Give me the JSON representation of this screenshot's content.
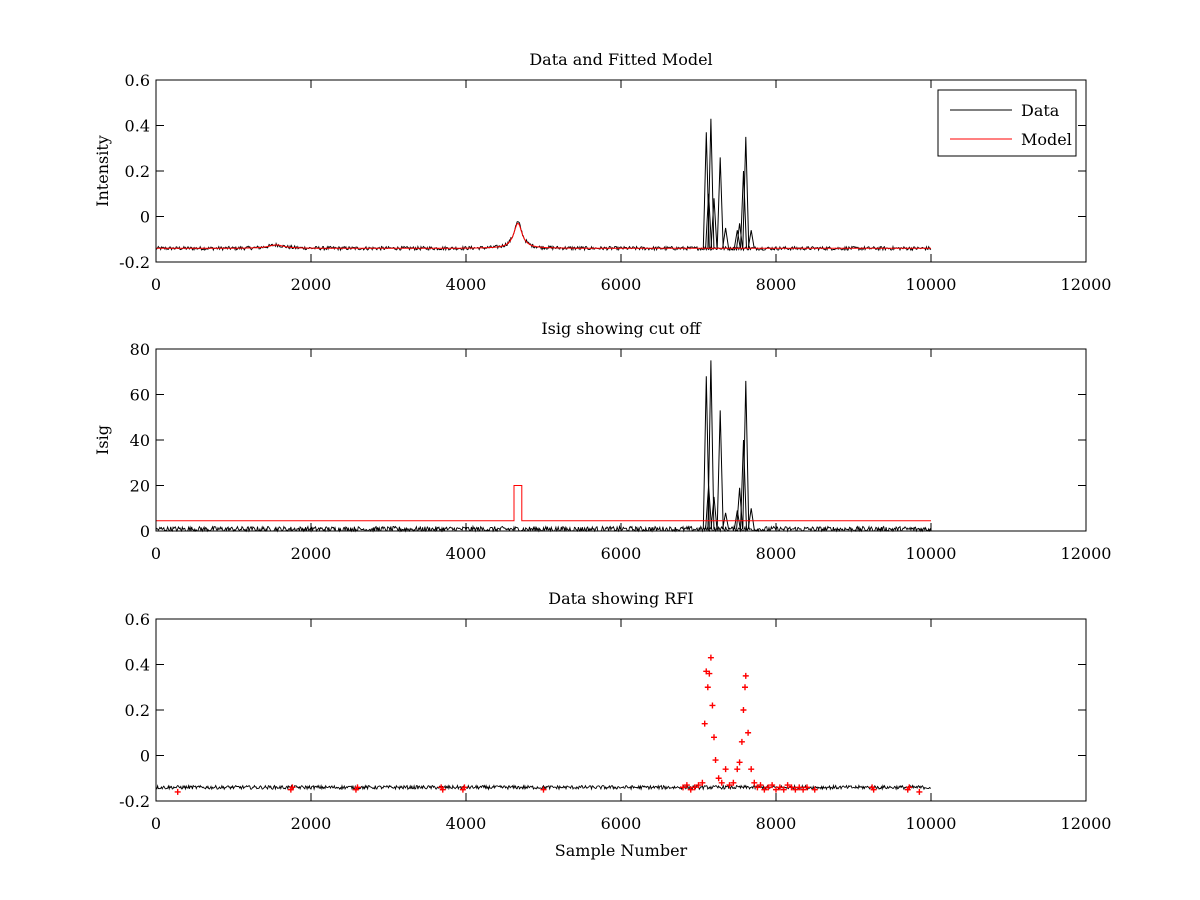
{
  "chart_data": [
    {
      "type": "line",
      "title": "Data and Fitted Model",
      "xlabel": "",
      "ylabel": "Intensity",
      "xlim": [
        0,
        12000
      ],
      "ylim": [
        -0.2,
        0.6
      ],
      "xticks": [
        "0",
        "2000",
        "4000",
        "6000",
        "8000",
        "10000",
        "12000"
      ],
      "yticks": [
        "-0.2",
        "0",
        "0.2",
        "0.4",
        "0.6"
      ],
      "legend": {
        "placement": "top-right",
        "entries": [
          "Data",
          "Model"
        ]
      },
      "grid": false,
      "series": [
        {
          "name": "Data",
          "color": "#000000",
          "baseline": -0.14,
          "noise": 0.008,
          "features": [
            {
              "kind": "bump",
              "center": 1550,
              "width": 120,
              "height": 0.015
            },
            {
              "kind": "bump",
              "center": 4670,
              "width": 65,
              "height": 0.115
            }
          ],
          "spikes": [
            {
              "x": 7100,
              "y": 0.37
            },
            {
              "x": 7130,
              "y": 0.1
            },
            {
              "x": 7160,
              "y": 0.43
            },
            {
              "x": 7200,
              "y": 0.08
            },
            {
              "x": 7280,
              "y": 0.26
            },
            {
              "x": 7350,
              "y": -0.05
            },
            {
              "x": 7500,
              "y": -0.06
            },
            {
              "x": 7530,
              "y": -0.03
            },
            {
              "x": 7580,
              "y": 0.2
            },
            {
              "x": 7610,
              "y": 0.35
            },
            {
              "x": 7680,
              "y": -0.06
            }
          ],
          "x_end": 10000
        },
        {
          "name": "Model",
          "color": "#ff0000",
          "baseline": -0.14,
          "features": [
            {
              "kind": "bump",
              "center": 1550,
              "width": 120,
              "height": 0.015
            },
            {
              "kind": "bump",
              "center": 4670,
              "width": 65,
              "height": 0.11
            }
          ],
          "x_end": 10000
        }
      ]
    },
    {
      "type": "line",
      "title": "Isig showing cut off",
      "xlabel": "",
      "ylabel": "Isig",
      "xlim": [
        0,
        12000
      ],
      "ylim": [
        0,
        80
      ],
      "xticks": [
        "0",
        "2000",
        "4000",
        "6000",
        "8000",
        "10000",
        "12000"
      ],
      "yticks": [
        "0",
        "20",
        "40",
        "60",
        "80"
      ],
      "grid": false,
      "series": [
        {
          "name": "Isig",
          "color": "#000000",
          "baseline": 0.8,
          "noise": 1.2,
          "spikes": [
            {
              "x": 7100,
              "y": 68
            },
            {
              "x": 7130,
              "y": 20
            },
            {
              "x": 7160,
              "y": 75
            },
            {
              "x": 7200,
              "y": 15
            },
            {
              "x": 7280,
              "y": 53
            },
            {
              "x": 7350,
              "y": 8
            },
            {
              "x": 7500,
              "y": 9
            },
            {
              "x": 7530,
              "y": 19
            },
            {
              "x": 7580,
              "y": 40
            },
            {
              "x": 7610,
              "y": 66
            },
            {
              "x": 7680,
              "y": 10
            }
          ],
          "x_end": 10000
        },
        {
          "name": "cut off",
          "color": "#ff0000",
          "steps": [
            [
              0,
              4.5
            ],
            [
              4620,
              4.5
            ],
            [
              4620,
              20
            ],
            [
              4720,
              20
            ],
            [
              4720,
              4.5
            ],
            [
              10000,
              4.5
            ]
          ]
        }
      ]
    },
    {
      "type": "scatter",
      "title": "Data showing RFI",
      "xlabel": "Sample Number",
      "ylabel": "",
      "xlim": [
        0,
        12000
      ],
      "ylim": [
        -0.2,
        0.6
      ],
      "xticks": [
        "0",
        "2000",
        "4000",
        "6000",
        "8000",
        "10000",
        "12000"
      ],
      "yticks": [
        "-0.2",
        "0",
        "0.2",
        "0.4",
        "0.6"
      ],
      "grid": false,
      "series": [
        {
          "name": "Data",
          "color": "#000000",
          "baseline": -0.14,
          "noise": 0.008,
          "x_end": 10000
        },
        {
          "name": "RFI",
          "color": "#ff0000",
          "marker": "+",
          "points": [
            [
              280,
              -0.16
            ],
            [
              1740,
              -0.15
            ],
            [
              1760,
              -0.14
            ],
            [
              2580,
              -0.15
            ],
            [
              2600,
              -0.14
            ],
            [
              3680,
              -0.14
            ],
            [
              3700,
              -0.15
            ],
            [
              3960,
              -0.15
            ],
            [
              3980,
              -0.14
            ],
            [
              5000,
              -0.15
            ],
            [
              6800,
              -0.14
            ],
            [
              6850,
              -0.13
            ],
            [
              6900,
              -0.15
            ],
            [
              6950,
              -0.14
            ],
            [
              7000,
              -0.13
            ],
            [
              7050,
              -0.12
            ],
            [
              7080,
              0.14
            ],
            [
              7100,
              0.37
            ],
            [
              7120,
              0.3
            ],
            [
              7140,
              0.36
            ],
            [
              7160,
              0.43
            ],
            [
              7180,
              0.22
            ],
            [
              7200,
              0.08
            ],
            [
              7220,
              -0.02
            ],
            [
              7260,
              -0.1
            ],
            [
              7300,
              -0.12
            ],
            [
              7350,
              -0.06
            ],
            [
              7400,
              -0.13
            ],
            [
              7450,
              -0.12
            ],
            [
              7500,
              -0.06
            ],
            [
              7530,
              -0.03
            ],
            [
              7560,
              0.06
            ],
            [
              7580,
              0.2
            ],
            [
              7600,
              0.3
            ],
            [
              7610,
              0.35
            ],
            [
              7640,
              0.1
            ],
            [
              7680,
              -0.06
            ],
            [
              7720,
              -0.12
            ],
            [
              7760,
              -0.14
            ],
            [
              7800,
              -0.13
            ],
            [
              7850,
              -0.15
            ],
            [
              7900,
              -0.14
            ],
            [
              7950,
              -0.13
            ],
            [
              8000,
              -0.15
            ],
            [
              8050,
              -0.14
            ],
            [
              8100,
              -0.15
            ],
            [
              8150,
              -0.13
            ],
            [
              8200,
              -0.14
            ],
            [
              8250,
              -0.15
            ],
            [
              8300,
              -0.14
            ],
            [
              8350,
              -0.15
            ],
            [
              8400,
              -0.14
            ],
            [
              8500,
              -0.15
            ],
            [
              9240,
              -0.14
            ],
            [
              9260,
              -0.15
            ],
            [
              9700,
              -0.15
            ],
            [
              9720,
              -0.14
            ],
            [
              9850,
              -0.16
            ]
          ]
        }
      ]
    }
  ]
}
